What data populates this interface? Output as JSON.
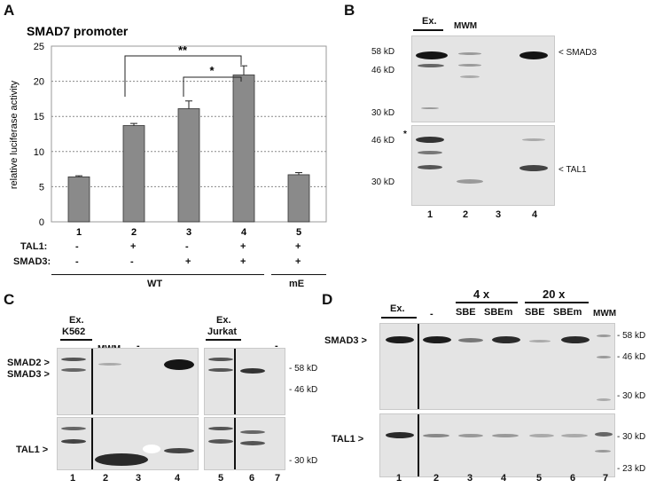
{
  "panel_a": {
    "letter": "A",
    "title": "SMAD7 promoter",
    "row_labels": {
      "tal1": "TAL1:",
      "smad3": "SMAD3:"
    },
    "tal1_signs": [
      "-",
      "+",
      "-",
      "+",
      "+"
    ],
    "smad3_signs": [
      "-",
      "-",
      "+",
      "+",
      "+"
    ],
    "group_wt": "WT",
    "group_me": "mE",
    "sig_far": "**",
    "sig_near": "*"
  },
  "chart_data": {
    "type": "bar",
    "categories": [
      "1",
      "2",
      "3",
      "4",
      "5"
    ],
    "values": [
      6.4,
      13.7,
      16.1,
      20.9,
      6.7
    ],
    "errors": [
      0.15,
      0.3,
      1.1,
      1.3,
      0.3
    ],
    "ylabel": "relative luciferase activity",
    "ylim": [
      0,
      25
    ],
    "yticks": [
      "0",
      "5",
      "10",
      "15",
      "20",
      "25"
    ],
    "grid": true,
    "bar_color": "#8a8a8a"
  },
  "panel_b": {
    "letter": "B",
    "lane_headers": [
      "Ex.",
      "MWM"
    ],
    "top_markers": [
      "58 kD",
      "46 kD",
      "30 kD"
    ],
    "bottom_markers": [
      "46 kD",
      "30 kD"
    ],
    "star": "*",
    "top_arrow": "< SMAD3",
    "bottom_arrow": "< TAL1",
    "lanes": [
      "1",
      "2",
      "3",
      "4"
    ]
  },
  "panel_c": {
    "letter": "C",
    "header_k562": [
      "Ex.",
      "K562"
    ],
    "header_mwm": "MWM",
    "header_dash1": "-",
    "header_jurkat": [
      "Ex.",
      "Jurkat"
    ],
    "header_dash2": "-",
    "left_labels": [
      "SMAD2 >",
      "SMAD3 >",
      "TAL1 >"
    ],
    "markers": [
      "- 58 kD",
      "- 46 kD",
      "- 30 kD"
    ],
    "lanes": [
      "1",
      "2",
      "3",
      "4",
      "5",
      "6",
      "7"
    ]
  },
  "panel_d": {
    "letter": "D",
    "header_ex": "Ex.",
    "header_dash": "-",
    "header_4x": "4 x",
    "header_20x": "20 x",
    "sbe_labels": [
      "SBE",
      "SBEm",
      "SBE",
      "SBEm"
    ],
    "header_mwm": "MWM",
    "left_labels": [
      "SMAD3 >",
      "TAL1 >"
    ],
    "markers": [
      "- 58 kD",
      "- 46 kD",
      "- 30 kD",
      "- 30 kD",
      "- 23 kD"
    ],
    "lanes": [
      "1",
      "2",
      "3",
      "4",
      "5",
      "6",
      "7"
    ]
  }
}
